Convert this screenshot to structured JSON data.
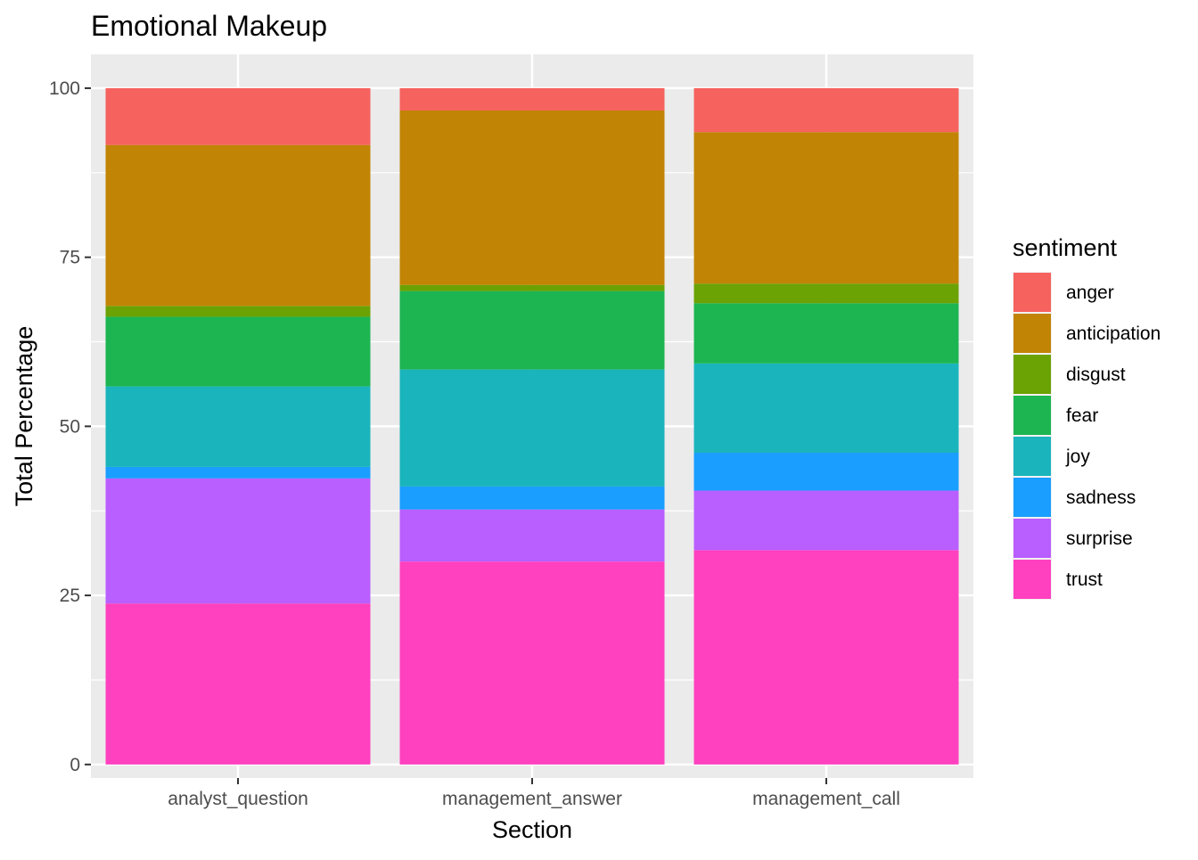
{
  "chart_data": {
    "type": "bar",
    "stacked": true,
    "title": "Emotional Makeup",
    "xlabel": "Section",
    "ylabel": "Total Percentage",
    "ylim": [
      -2,
      105
    ],
    "yticks": [
      0,
      25,
      50,
      75,
      100
    ],
    "categories": [
      "analyst_question",
      "management_answer",
      "management_call"
    ],
    "legend": {
      "title": "sentiment",
      "position": "right"
    },
    "grid": true,
    "series": [
      {
        "name": "trust",
        "color": "#FF40BF",
        "values": [
          23.8,
          30.0,
          31.7
        ]
      },
      {
        "name": "surprise",
        "color": "#B95EFF",
        "values": [
          18.5,
          7.7,
          8.8
        ]
      },
      {
        "name": "sadness",
        "color": "#1A9EFF",
        "values": [
          1.7,
          3.4,
          5.6
        ]
      },
      {
        "name": "joy",
        "color": "#1AB4BC",
        "values": [
          11.9,
          17.3,
          13.2
        ]
      },
      {
        "name": "fear",
        "color": "#1CB552",
        "values": [
          10.3,
          11.6,
          8.9
        ]
      },
      {
        "name": "disgust",
        "color": "#6BA204",
        "values": [
          1.6,
          0.9,
          2.9
        ]
      },
      {
        "name": "anticipation",
        "color": "#C18404",
        "values": [
          23.8,
          25.8,
          22.4
        ]
      },
      {
        "name": "anger",
        "color": "#F6625E",
        "values": [
          8.4,
          3.3,
          6.5
        ]
      }
    ]
  }
}
